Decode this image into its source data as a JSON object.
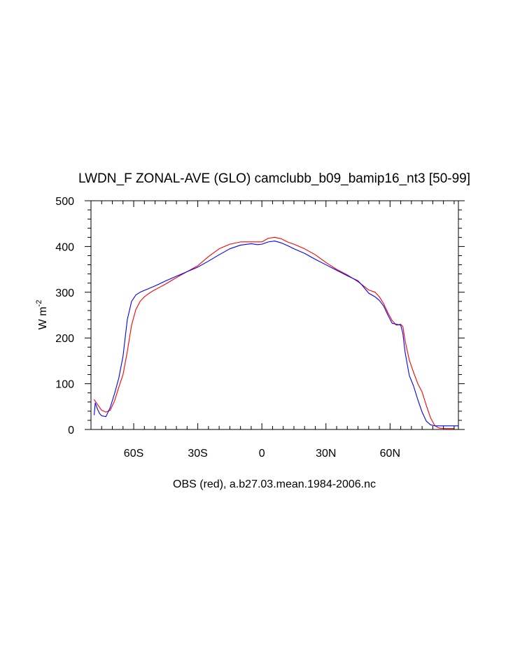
{
  "chart_data": {
    "type": "line",
    "title": "LWDN_F ZONAL-AVE (GLO) camclubb_b09_bamip16_nt3 [50-99]",
    "xlabel": "OBS (red), a.b27.03.mean.1984-2006.nc",
    "ylabel_main": "W m",
    "ylabel_sup": "-2",
    "xlim": [
      -80,
      92
    ],
    "ylim": [
      0,
      500
    ],
    "grid": false,
    "x_ticks": [
      {
        "value": -60,
        "label": "60S"
      },
      {
        "value": -30,
        "label": "30S"
      },
      {
        "value": 0,
        "label": "0"
      },
      {
        "value": 30,
        "label": "30N"
      },
      {
        "value": 60,
        "label": "60N"
      }
    ],
    "y_ticks": [
      {
        "value": 0,
        "label": "0"
      },
      {
        "value": 100,
        "label": "100"
      },
      {
        "value": 200,
        "label": "200"
      },
      {
        "value": 300,
        "label": "300"
      },
      {
        "value": 400,
        "label": "400"
      },
      {
        "value": 500,
        "label": "500"
      }
    ],
    "series": [
      {
        "color": "#ff0000",
        "x": [
          -78.5,
          -77,
          -75,
          -73,
          -71,
          -69,
          -67,
          -65,
          -63,
          -61,
          -59,
          -57,
          -55,
          -53,
          -51,
          -49,
          -45,
          -40,
          -35,
          -30,
          -25,
          -20,
          -15,
          -10,
          -5,
          0,
          3,
          6,
          9,
          12,
          15,
          20,
          25,
          30,
          35,
          40,
          45,
          47,
          50,
          53,
          55,
          57,
          59,
          61,
          63,
          65,
          66,
          67,
          69,
          71,
          73,
          75,
          77,
          79,
          81,
          83,
          86,
          90
        ],
        "y": [
          65,
          55,
          42,
          38,
          42,
          62,
          92,
          120,
          170,
          228,
          262,
          280,
          290,
          297,
          303,
          308,
          318,
          332,
          345,
          358,
          378,
          395,
          405,
          410,
          410,
          410,
          418,
          420,
          417,
          410,
          405,
          395,
          382,
          365,
          350,
          338,
          323,
          316,
          305,
          300,
          290,
          275,
          255,
          238,
          228,
          230,
          225,
          195,
          152,
          125,
          100,
          82,
          52,
          25,
          8,
          3,
          2,
          2
        ]
      },
      {
        "color": "#0000ff",
        "x": [
          -78.5,
          -78,
          -77,
          -76,
          -75,
          -73,
          -71,
          -69,
          -67,
          -65,
          -63,
          -61,
          -59,
          -57,
          -55,
          -53,
          -51,
          -49,
          -45,
          -40,
          -35,
          -30,
          -25,
          -20,
          -15,
          -10,
          -5,
          -2,
          0,
          3,
          6,
          9,
          12,
          15,
          20,
          25,
          30,
          35,
          40,
          45,
          47,
          50,
          53,
          55,
          57,
          59,
          61,
          63,
          65,
          66,
          67,
          69,
          71,
          73,
          75,
          77,
          79,
          81,
          84,
          88,
          92
        ],
        "y": [
          32,
          58,
          45,
          35,
          30,
          28,
          48,
          78,
          112,
          160,
          240,
          280,
          294,
          300,
          304,
          308,
          312,
          316,
          325,
          335,
          345,
          355,
          368,
          382,
          395,
          403,
          406,
          404,
          405,
          410,
          412,
          408,
          402,
          395,
          385,
          372,
          360,
          348,
          336,
          325,
          315,
          298,
          290,
          282,
          270,
          250,
          232,
          230,
          228,
          210,
          170,
          118,
          95,
          65,
          38,
          18,
          10,
          8,
          8,
          8,
          8
        ]
      }
    ]
  }
}
